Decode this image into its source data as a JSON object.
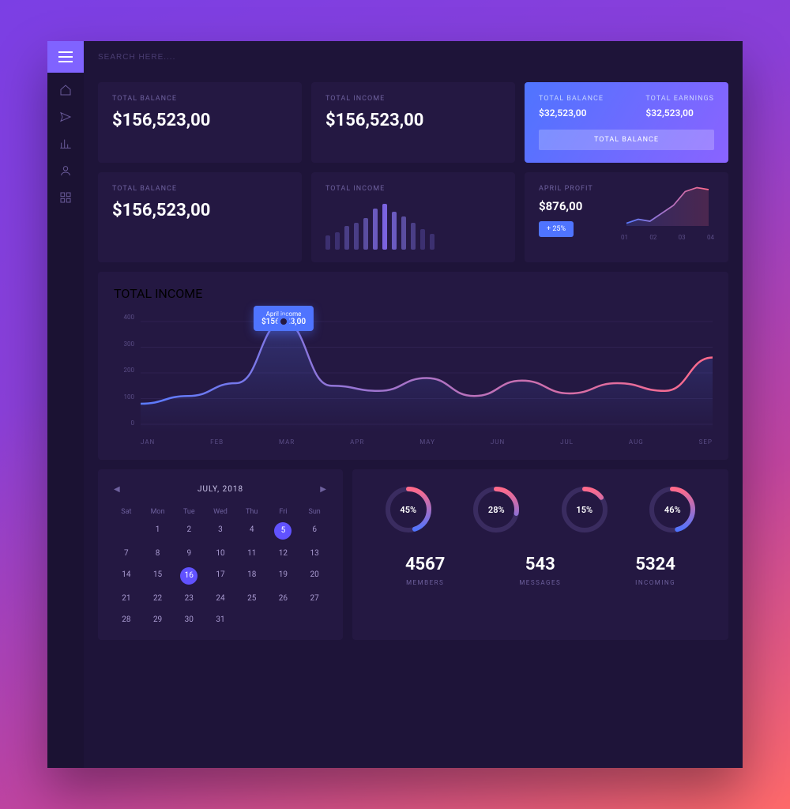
{
  "colors": {
    "card_bg": "#241842",
    "panel_bg": "#1e1439",
    "accent_grad_a": "#4f74ff",
    "accent_grad_b": "#8a63ff",
    "text_muted": "#6e619e",
    "line_grad_a": "#5a7bff",
    "line_grad_b": "#ff6a8a",
    "grid": "#3a2c60"
  },
  "search": {
    "placeholder": "SEARCH HERE...."
  },
  "row1": {
    "c1": {
      "label": "TOTAL BALANCE",
      "value": "$156,523,00"
    },
    "c2": {
      "label": "TOTAL INCOME",
      "value": "$156,523,00"
    },
    "accent": {
      "a_label": "TOTAL BALANCE",
      "a_value": "$32,523,00",
      "b_label": "TOTAL EARNINGS",
      "b_value": "$32,523,00",
      "button": "TOTAL BALANCE"
    }
  },
  "row2": {
    "c1": {
      "label": "TOTAL BALANCE",
      "value": "$156,523,00"
    },
    "bars": {
      "label": "TOTAL INCOME",
      "heights": [
        18,
        22,
        30,
        34,
        40,
        52,
        58,
        48,
        42,
        34,
        26,
        20
      ],
      "colors": [
        "#3c3070",
        "#3c3070",
        "#4a3e86",
        "#4a3e86",
        "#5a4da0",
        "#6b5ac0",
        "#7b63e0",
        "#6b5ac0",
        "#5a4da0",
        "#4a3e86",
        "#3c3070",
        "#3c3070"
      ]
    },
    "profit": {
      "label": "APRIL PROFIT",
      "value": "$876,00",
      "delta": "+ 25%",
      "spark": {
        "points": [
          12,
          16,
          14,
          22,
          30,
          44,
          48,
          46
        ],
        "x_labels": [
          "01",
          "02",
          "03",
          "04"
        ],
        "color_a": "#5a7bff",
        "color_b": "#ff6a8a"
      }
    }
  },
  "main_chart": {
    "label": "TOTAL INCOME",
    "y_ticks": [
      "400",
      "300",
      "200",
      "100",
      "0"
    ],
    "x_ticks": [
      "JAN",
      "FEB",
      "MAR",
      "APR",
      "MAY",
      "JUN",
      "JUL",
      "AUG",
      "SEP"
    ],
    "tooltip": {
      "title": "April income",
      "value": "$156,523,00"
    },
    "highlight_index": 3,
    "values": [
      80,
      110,
      160,
      400,
      150,
      130,
      180,
      110,
      170,
      120,
      160,
      130,
      260
    ]
  },
  "calendar": {
    "title": "JULY, 2018",
    "dow": [
      "Sat",
      "Mon",
      "Tue",
      "Wed",
      "Thu",
      "Fri",
      "Sun"
    ],
    "weeks": [
      [
        "",
        "1",
        "2",
        "3",
        "4",
        "5",
        "6"
      ],
      [
        "7",
        "8",
        "9",
        "10",
        "11",
        "12",
        "13"
      ],
      [
        "14",
        "15",
        "16",
        "17",
        "18",
        "19",
        "20"
      ],
      [
        "21",
        "22",
        "23",
        "24",
        "25",
        "26",
        "27"
      ],
      [
        "28",
        "29",
        "30",
        "31",
        "",
        "",
        ""
      ]
    ],
    "selected": [
      "5",
      "16"
    ]
  },
  "stats": {
    "donuts": [
      {
        "pct": 45,
        "label": "45%"
      },
      {
        "pct": 28,
        "label": "28%"
      },
      {
        "pct": 15,
        "label": "15%"
      },
      {
        "pct": 46,
        "label": "46%"
      }
    ],
    "donut_color_a": "#4f74ff",
    "donut_color_b": "#ff6a8a",
    "donut_track": "#3a2c60",
    "counters": [
      {
        "value": "4567",
        "label": "MEMBERS"
      },
      {
        "value": "543",
        "label": "MESSAGES"
      },
      {
        "value": "5324",
        "label": "INCOMING"
      }
    ]
  }
}
